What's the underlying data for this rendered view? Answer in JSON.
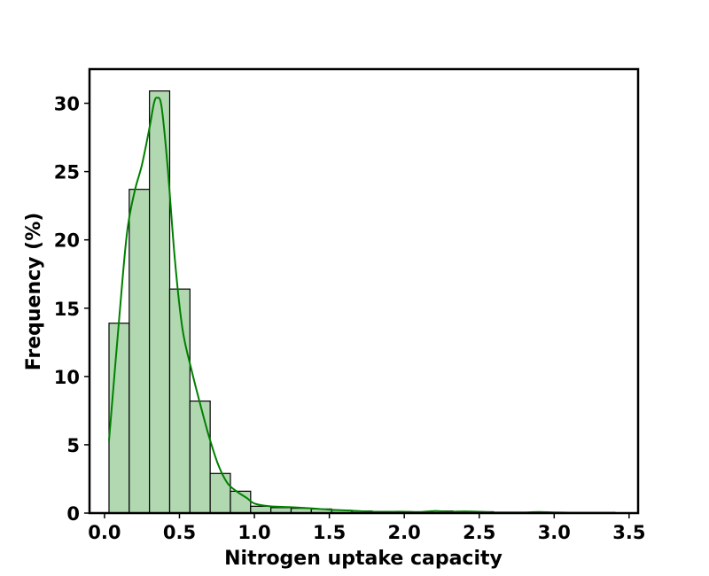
{
  "chart_data": {
    "type": "bar",
    "title": "",
    "xlabel": "Nitrogen uptake capacity",
    "ylabel": "Frequency (%)",
    "xlim": [
      -0.1,
      3.56
    ],
    "ylim": [
      0,
      32.5
    ],
    "xticks": [
      "0.0",
      "0.5",
      "1.0",
      "1.5",
      "2.0",
      "2.5",
      "3.0",
      "3.5"
    ],
    "yticks": [
      "0",
      "5",
      "10",
      "15",
      "20",
      "25",
      "30"
    ],
    "grid": false,
    "bins": {
      "edges": [
        0.03,
        0.165,
        0.3,
        0.435,
        0.57,
        0.705,
        0.84,
        0.975,
        1.11,
        1.245,
        1.38,
        1.515,
        1.65,
        1.785,
        1.92,
        2.055,
        2.19,
        2.325,
        2.46,
        2.595,
        2.73,
        2.865,
        3.0,
        3.135,
        3.27,
        3.405
      ],
      "values": [
        13.9,
        23.7,
        30.9,
        16.4,
        8.2,
        2.9,
        1.6,
        0.5,
        0.4,
        0.35,
        0.3,
        0.2,
        0.15,
        0.1,
        0.1,
        0.08,
        0.15,
        0.1,
        0.1,
        0.05,
        0.05,
        0.05,
        0.05,
        0.05,
        0.05
      ]
    },
    "kde": {
      "x": [
        0.03,
        0.1,
        0.15,
        0.2,
        0.25,
        0.3,
        0.33,
        0.35,
        0.38,
        0.42,
        0.47,
        0.52,
        0.58,
        0.65,
        0.7,
        0.76,
        0.82,
        0.88,
        0.95,
        1.0,
        1.1,
        1.2,
        1.3,
        1.4,
        1.5,
        1.6,
        1.7,
        1.8,
        1.9,
        2.0,
        2.1,
        2.2,
        2.3,
        2.4,
        2.5,
        2.6,
        2.7,
        2.8,
        2.9,
        3.0,
        3.1,
        3.2,
        3.3,
        3.4
      ],
      "y": [
        5.3,
        14.5,
        20.5,
        23.5,
        25.5,
        28.2,
        30.0,
        30.4,
        29.8,
        25.5,
        18.5,
        13.5,
        10.5,
        7.5,
        5.5,
        3.5,
        2.2,
        1.6,
        1.1,
        0.7,
        0.5,
        0.45,
        0.4,
        0.33,
        0.25,
        0.2,
        0.15,
        0.1,
        0.1,
        0.1,
        0.08,
        0.15,
        0.1,
        0.12,
        0.1,
        0.05,
        0.05,
        0.05,
        0.08,
        0.05,
        0.03,
        0.03,
        0.03,
        0.03
      ]
    },
    "colors": {
      "bar_fill": "#b2d8b2",
      "bar_edge": "#000000",
      "kde_line": "#008000",
      "axis": "#000000"
    }
  }
}
